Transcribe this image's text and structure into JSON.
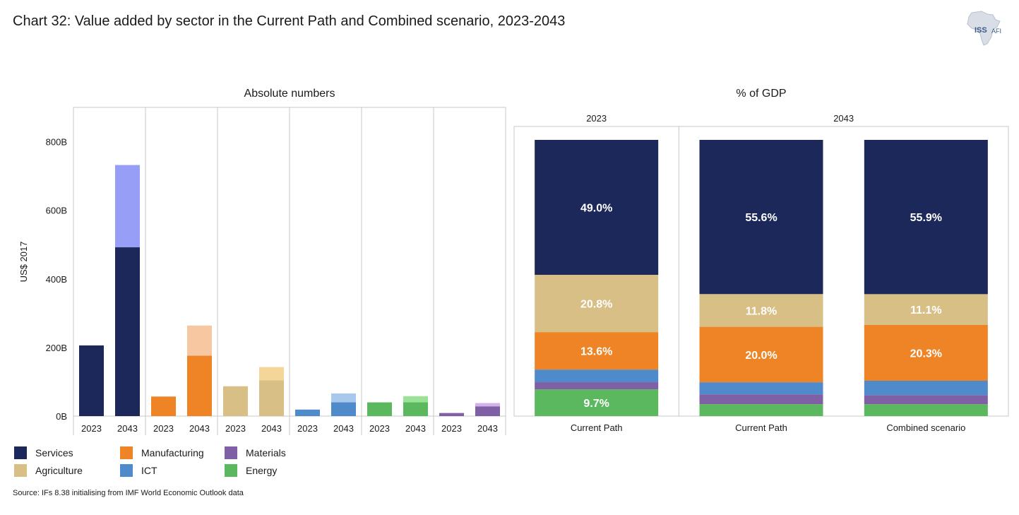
{
  "title": "Chart 32: Value added by sector in the Current Path and Combined scenario, 2023-2043",
  "logo": {
    "text": "ISS",
    "sub": "AFI"
  },
  "source": "Source: IFs 8.38 initialising from IMF World Economic Outlook data",
  "colors": {
    "Services": "#1b2859",
    "Manufacturing": "#ee8425",
    "Materials": "#8060a4",
    "Agriculture": "#d8bf86",
    "ICT": "#4f8acb",
    "Energy": "#5cb85f",
    "Services_light": "#969ef5",
    "Manufacturing_light": "#f6c7a0",
    "Agriculture_light": "#f3d698",
    "ICT_light": "#a9c8ed",
    "Energy_light": "#99e296",
    "Materials_light": "#d2b2ea"
  },
  "legend": [
    {
      "label": "Services",
      "key": "Services"
    },
    {
      "label": "Manufacturing",
      "key": "Manufacturing"
    },
    {
      "label": "Materials",
      "key": "Materials"
    },
    {
      "label": "Agriculture",
      "key": "Agriculture"
    },
    {
      "label": "ICT",
      "key": "ICT"
    },
    {
      "label": "Energy",
      "key": "Energy"
    }
  ],
  "chart_data": [
    {
      "type": "bar",
      "title": "Absolute numbers",
      "ylabel": "US$ 2017",
      "ylim": [
        0,
        900
      ],
      "yticks": [
        0,
        200,
        400,
        600,
        800
      ],
      "ytick_labels": [
        "0B",
        "200B",
        "400B",
        "600B",
        "800B"
      ],
      "groups": [
        {
          "sector": "Services",
          "bars": [
            {
              "year": "2023",
              "current_path": 206
            },
            {
              "year": "2043",
              "current_path": 492,
              "combined": 732
            }
          ]
        },
        {
          "sector": "Manufacturing",
          "bars": [
            {
              "year": "2023",
              "current_path": 57
            },
            {
              "year": "2043",
              "current_path": 176,
              "combined": 264
            }
          ]
        },
        {
          "sector": "Agriculture",
          "bars": [
            {
              "year": "2023",
              "current_path": 87
            },
            {
              "year": "2043",
              "current_path": 104,
              "combined": 143
            }
          ]
        },
        {
          "sector": "ICT",
          "bars": [
            {
              "year": "2023",
              "current_path": 19
            },
            {
              "year": "2043",
              "current_path": 40,
              "combined": 66
            }
          ]
        },
        {
          "sector": "Energy",
          "bars": [
            {
              "year": "2023",
              "current_path": 40
            },
            {
              "year": "2043",
              "current_path": 40,
              "combined": 58
            }
          ]
        },
        {
          "sector": "Materials",
          "bars": [
            {
              "year": "2023",
              "current_path": 9
            },
            {
              "year": "2043",
              "current_path": 28,
              "combined": 38
            }
          ]
        }
      ]
    },
    {
      "type": "bar",
      "stacked": true,
      "title": "% of GDP",
      "year_groups": [
        {
          "label": "2023",
          "span": 1
        },
        {
          "label": "2043",
          "span": 2
        }
      ],
      "categories": [
        "Current Path",
        "Current Path",
        "Combined scenario"
      ],
      "series": [
        {
          "name": "Energy",
          "values": [
            9.7,
            4.3,
            4.3
          ],
          "labels": [
            "9.7%",
            "",
            ""
          ]
        },
        {
          "name": "Materials",
          "values": [
            2.6,
            3.5,
            3.3
          ],
          "labels": [
            "",
            "",
            ""
          ]
        },
        {
          "name": "ICT",
          "values": [
            4.6,
            4.4,
            5.2
          ],
          "labels": [
            "",
            "",
            ""
          ]
        },
        {
          "name": "Manufacturing",
          "values": [
            13.6,
            20.0,
            20.3
          ],
          "labels": [
            "13.6%",
            "20.0%",
            "20.3%"
          ]
        },
        {
          "name": "Agriculture",
          "values": [
            20.8,
            11.8,
            11.1
          ],
          "labels": [
            "20.8%",
            "11.8%",
            "11.1%"
          ]
        },
        {
          "name": "Services",
          "values": [
            49.0,
            55.6,
            55.9
          ],
          "labels": [
            "49.0%",
            "55.6%",
            "55.9%"
          ]
        }
      ]
    }
  ]
}
